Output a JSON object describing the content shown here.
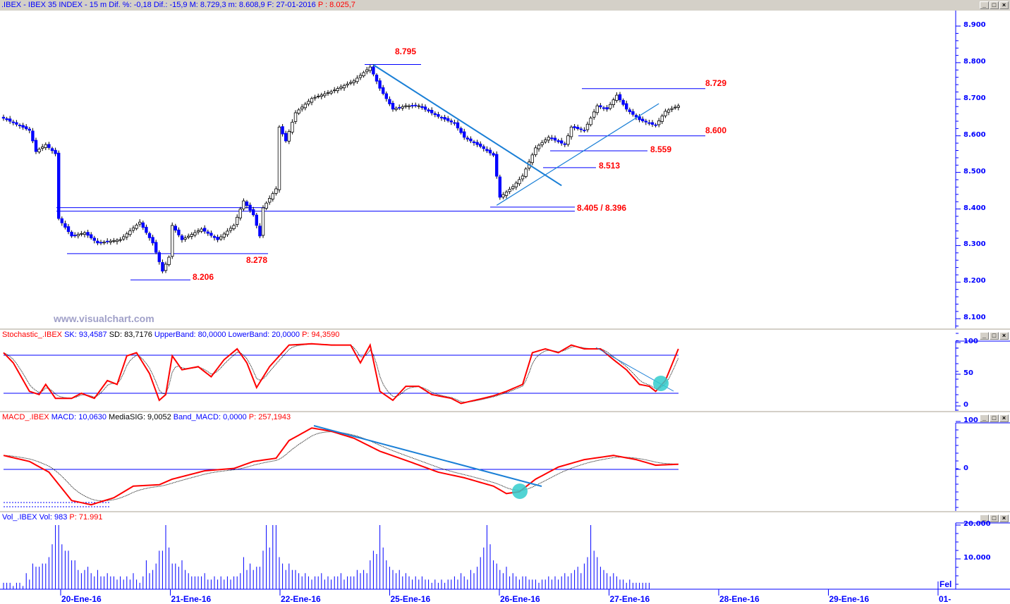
{
  "header": {
    "symbol": ".IBEX - IBEX 35 INDEX - ",
    "interval": "15 m",
    "dif_pct": "Dif. %: -0,18",
    "dif": "Dif.: -15,9",
    "max": "M: 8.729,3",
    "min": "m: 8.608,9",
    "date": "F: 27-01-2016",
    "p": "P : 8.025,7"
  },
  "window_buttons": {
    "min": "_",
    "max": "□",
    "close": "×"
  },
  "watermark": "www.visualchart.com",
  "stoch_label": {
    "name": "Stochastic_.IBEX",
    "sk": "SK: 93,4587",
    "sd": "SD: 83,7176",
    "ub": "UpperBand: 80,0000",
    "lb": "LowerBand: 20,0000",
    "p": "P: 94,3590"
  },
  "macd_label": {
    "name": "MACD_.IBEX",
    "macd": "MACD: 10,0630",
    "sig": "MediaSIG: 9,0052",
    "band": "Band_MACD: 0,0000",
    "p": "P: 257,1943"
  },
  "vol_label": {
    "name": "Vol_.IBEX Vol: 983",
    "p": "P: 71.991"
  },
  "colors": {
    "axis": "#0000ff",
    "label": "#ff0000",
    "trend": "#1a7fd6",
    "stoch": "#ff0000",
    "macd": "#ff0000",
    "highlight": "#33cccc"
  },
  "chart_data": [
    {
      "type": "candlestick",
      "title": "IBEX 35 15m",
      "ylim": [
        8050,
        8950
      ],
      "yticks": [
        "8.900",
        "8.800",
        "8.700",
        "8.600",
        "8.500",
        "8.400",
        "8.300",
        "8.200",
        "8.100"
      ],
      "xticks": [
        "20-Ene-16",
        "21-Ene-16",
        "22-Ene-16",
        "25-Ene-16",
        "26-Ene-16",
        "27-Ene-16",
        "28-Ene-16",
        "29-Ene-16",
        "01-"
      ],
      "close_points": [
        [
          0,
          8648
        ],
        [
          8,
          8615
        ],
        [
          10,
          8557
        ],
        [
          13,
          8576
        ],
        [
          16,
          8551
        ],
        [
          17,
          8374
        ],
        [
          21,
          8326
        ],
        [
          25,
          8335
        ],
        [
          29,
          8307
        ],
        [
          36,
          8316
        ],
        [
          42,
          8364
        ],
        [
          46,
          8307
        ],
        [
          49,
          8230
        ],
        [
          51,
          8268
        ],
        [
          52,
          8355
        ],
        [
          55,
          8316
        ],
        [
          61,
          8345
        ],
        [
          66,
          8316
        ],
        [
          71,
          8355
        ],
        [
          74,
          8422
        ],
        [
          77,
          8384
        ],
        [
          79,
          8326
        ],
        [
          80,
          8403
        ],
        [
          84,
          8455
        ],
        [
          85,
          8624
        ],
        [
          87,
          8586
        ],
        [
          90,
          8663
        ],
        [
          95,
          8702
        ],
        [
          101,
          8721
        ],
        [
          108,
          8750
        ],
        [
          113,
          8788
        ],
        [
          116,
          8730
        ],
        [
          120,
          8673
        ],
        [
          124,
          8682
        ],
        [
          128,
          8682
        ],
        [
          134,
          8653
        ],
        [
          139,
          8634
        ],
        [
          142,
          8596
        ],
        [
          147,
          8571
        ],
        [
          151,
          8547
        ],
        [
          153,
          8432
        ],
        [
          157,
          8461
        ],
        [
          160,
          8490
        ],
        [
          164,
          8567
        ],
        [
          168,
          8596
        ],
        [
          173,
          8576
        ],
        [
          175,
          8624
        ],
        [
          179,
          8615
        ],
        [
          183,
          8682
        ],
        [
          186,
          8673
        ],
        [
          189,
          8711
        ],
        [
          192,
          8673
        ],
        [
          196,
          8644
        ],
        [
          201,
          8628
        ],
        [
          204,
          8667
        ],
        [
          208,
          8682
        ]
      ],
      "levels": [
        {
          "value": "8.795",
          "price": 8795
        },
        {
          "value": "8.729",
          "price": 8729
        },
        {
          "value": "8.600",
          "price": 8600
        },
        {
          "value": "8.559",
          "price": 8559
        },
        {
          "value": "8.513",
          "price": 8513
        },
        {
          "value": "8.405 / 8.396",
          "price": 8405
        },
        {
          "value": "8.278",
          "price": 8278
        },
        {
          "value": "8.206",
          "price": 8206
        }
      ],
      "trendlines": [
        [
          [
            114,
            8794
          ],
          [
            172,
            8464
          ]
        ],
        [
          [
            152,
            8410
          ],
          [
            202,
            8688
          ]
        ]
      ]
    },
    {
      "type": "line",
      "name": "Stochastic",
      "ylim": [
        0,
        100
      ],
      "yticks": [
        "100",
        "50",
        "0"
      ],
      "bands": [
        80,
        20
      ],
      "sk_points": [
        [
          0,
          84
        ],
        [
          3,
          68
        ],
        [
          8,
          23
        ],
        [
          11,
          18
        ],
        [
          13,
          34
        ],
        [
          16,
          12
        ],
        [
          21,
          12
        ],
        [
          24,
          20
        ],
        [
          28,
          12
        ],
        [
          32,
          40
        ],
        [
          35,
          34
        ],
        [
          38,
          79
        ],
        [
          41,
          84
        ],
        [
          45,
          51
        ],
        [
          48,
          9
        ],
        [
          50,
          18
        ],
        [
          52,
          79
        ],
        [
          55,
          57
        ],
        [
          60,
          62
        ],
        [
          64,
          46
        ],
        [
          68,
          73
        ],
        [
          72,
          90
        ],
        [
          75,
          68
        ],
        [
          78,
          29
        ],
        [
          82,
          62
        ],
        [
          85,
          79
        ],
        [
          88,
          96
        ],
        [
          95,
          98
        ],
        [
          101,
          96
        ],
        [
          107,
          96
        ],
        [
          110,
          68
        ],
        [
          113,
          96
        ],
        [
          116,
          23
        ],
        [
          120,
          9
        ],
        [
          124,
          31
        ],
        [
          128,
          31
        ],
        [
          132,
          18
        ],
        [
          138,
          12
        ],
        [
          141,
          4
        ],
        [
          147,
          11
        ],
        [
          151,
          16
        ],
        [
          155,
          23
        ],
        [
          160,
          34
        ],
        [
          163,
          84
        ],
        [
          167,
          90
        ],
        [
          171,
          84
        ],
        [
          175,
          96
        ],
        [
          179,
          90
        ],
        [
          184,
          90
        ],
        [
          188,
          73
        ],
        [
          192,
          57
        ],
        [
          196,
          34
        ],
        [
          199,
          31
        ],
        [
          201,
          23
        ],
        [
          204,
          40
        ],
        [
          208,
          90
        ]
      ]
    },
    {
      "type": "line",
      "name": "MACD",
      "yticks": [
        "100",
        "0"
      ],
      "band": 0,
      "macd_points": [
        [
          0,
          30
        ],
        [
          8,
          17
        ],
        [
          14,
          -6
        ],
        [
          21,
          -67
        ],
        [
          27,
          -76
        ],
        [
          34,
          -61
        ],
        [
          40,
          -36
        ],
        [
          48,
          -33
        ],
        [
          52,
          -21
        ],
        [
          62,
          -3
        ],
        [
          71,
          2
        ],
        [
          77,
          17
        ],
        [
          84,
          24
        ],
        [
          88,
          62
        ],
        [
          95,
          89
        ],
        [
          101,
          82
        ],
        [
          108,
          67
        ],
        [
          116,
          39
        ],
        [
          125,
          17
        ],
        [
          134,
          -6
        ],
        [
          142,
          -18
        ],
        [
          151,
          -36
        ],
        [
          155,
          -52
        ],
        [
          159,
          -48
        ],
        [
          164,
          -21
        ],
        [
          171,
          5
        ],
        [
          179,
          21
        ],
        [
          188,
          30
        ],
        [
          195,
          21
        ],
        [
          201,
          9
        ],
        [
          208,
          11
        ]
      ]
    },
    {
      "type": "bar",
      "name": "Volume",
      "yticks": [
        "20.000",
        "10.000"
      ],
      "values_thousands": [
        2,
        2,
        2,
        1,
        2,
        2,
        1,
        5,
        3,
        8,
        7,
        7,
        8,
        8,
        10,
        14,
        20,
        20,
        14,
        12,
        12,
        9,
        9,
        6,
        5,
        6,
        7,
        5,
        4,
        6,
        4,
        4,
        5,
        4,
        4,
        3,
        4,
        3,
        4,
        3,
        5,
        3,
        2,
        4,
        9,
        5,
        6,
        8,
        12,
        12,
        20,
        13,
        8,
        8,
        7,
        9,
        6,
        5,
        4,
        4,
        4,
        4,
        5,
        3,
        3,
        4,
        3,
        4,
        3,
        4,
        3,
        4,
        4,
        5,
        10,
        6,
        8,
        6,
        7,
        7,
        12,
        20,
        13,
        20,
        20,
        10,
        8,
        6,
        8,
        6,
        6,
        5,
        4,
        5,
        4,
        3,
        4,
        4,
        5,
        3,
        4,
        3,
        4,
        4,
        5,
        3,
        4,
        4,
        4,
        6,
        5,
        6,
        5,
        9,
        12,
        11,
        20,
        13,
        9,
        7,
        6,
        5,
        6,
        4,
        5,
        4,
        3,
        4,
        3,
        4,
        3,
        3,
        2,
        3,
        2,
        3,
        2,
        3,
        3,
        4,
        3,
        5,
        4,
        3,
        6,
        5,
        7,
        10,
        13,
        20,
        14,
        9,
        8,
        6,
        5,
        7,
        4,
        5,
        4,
        3,
        4,
        4,
        3,
        3,
        3,
        2,
        3,
        3,
        4,
        3,
        4,
        3,
        4,
        5,
        4,
        5,
        6,
        7,
        5,
        8,
        10,
        20,
        12,
        10,
        7,
        6,
        5,
        4,
        5,
        4,
        3,
        3,
        2,
        3,
        2,
        2,
        2,
        2,
        2,
        2
      ]
    }
  ]
}
